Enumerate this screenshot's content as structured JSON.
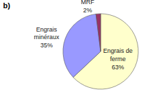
{
  "chart_data": {
    "type": "pie",
    "title": "b)",
    "categories": [
      "Engrais de ferme",
      "Engrais minéraux",
      "MRF"
    ],
    "values": [
      63,
      35,
      2
    ],
    "value_labels": [
      "63%",
      "35%",
      "2%"
    ],
    "colors": [
      "#ffffcc",
      "#9999ff",
      "#993366"
    ],
    "data_labels": true
  }
}
